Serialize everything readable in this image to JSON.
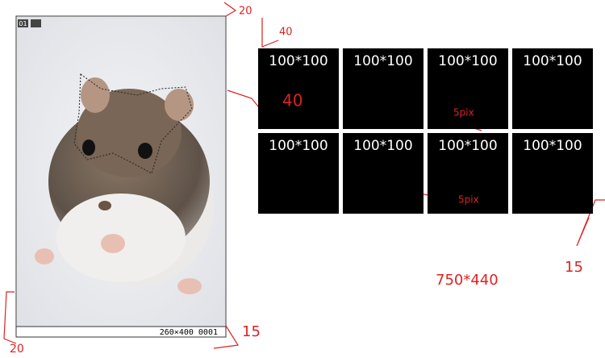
{
  "photo": {
    "badge": "01",
    "caption": "260×400 0001"
  },
  "tiles": [
    "100*100",
    "100*100",
    "100*100",
    "100*100",
    "100*100",
    "100*100",
    "100*100",
    "100*100"
  ],
  "annotations": {
    "top_margin": "20",
    "left_offset": "40",
    "tile_offset": "40",
    "gap_h": "5pix",
    "gap_v": "5pix",
    "right_margin": "15",
    "left_margin": "20",
    "bottom_margin": "15",
    "size": "750*440"
  }
}
